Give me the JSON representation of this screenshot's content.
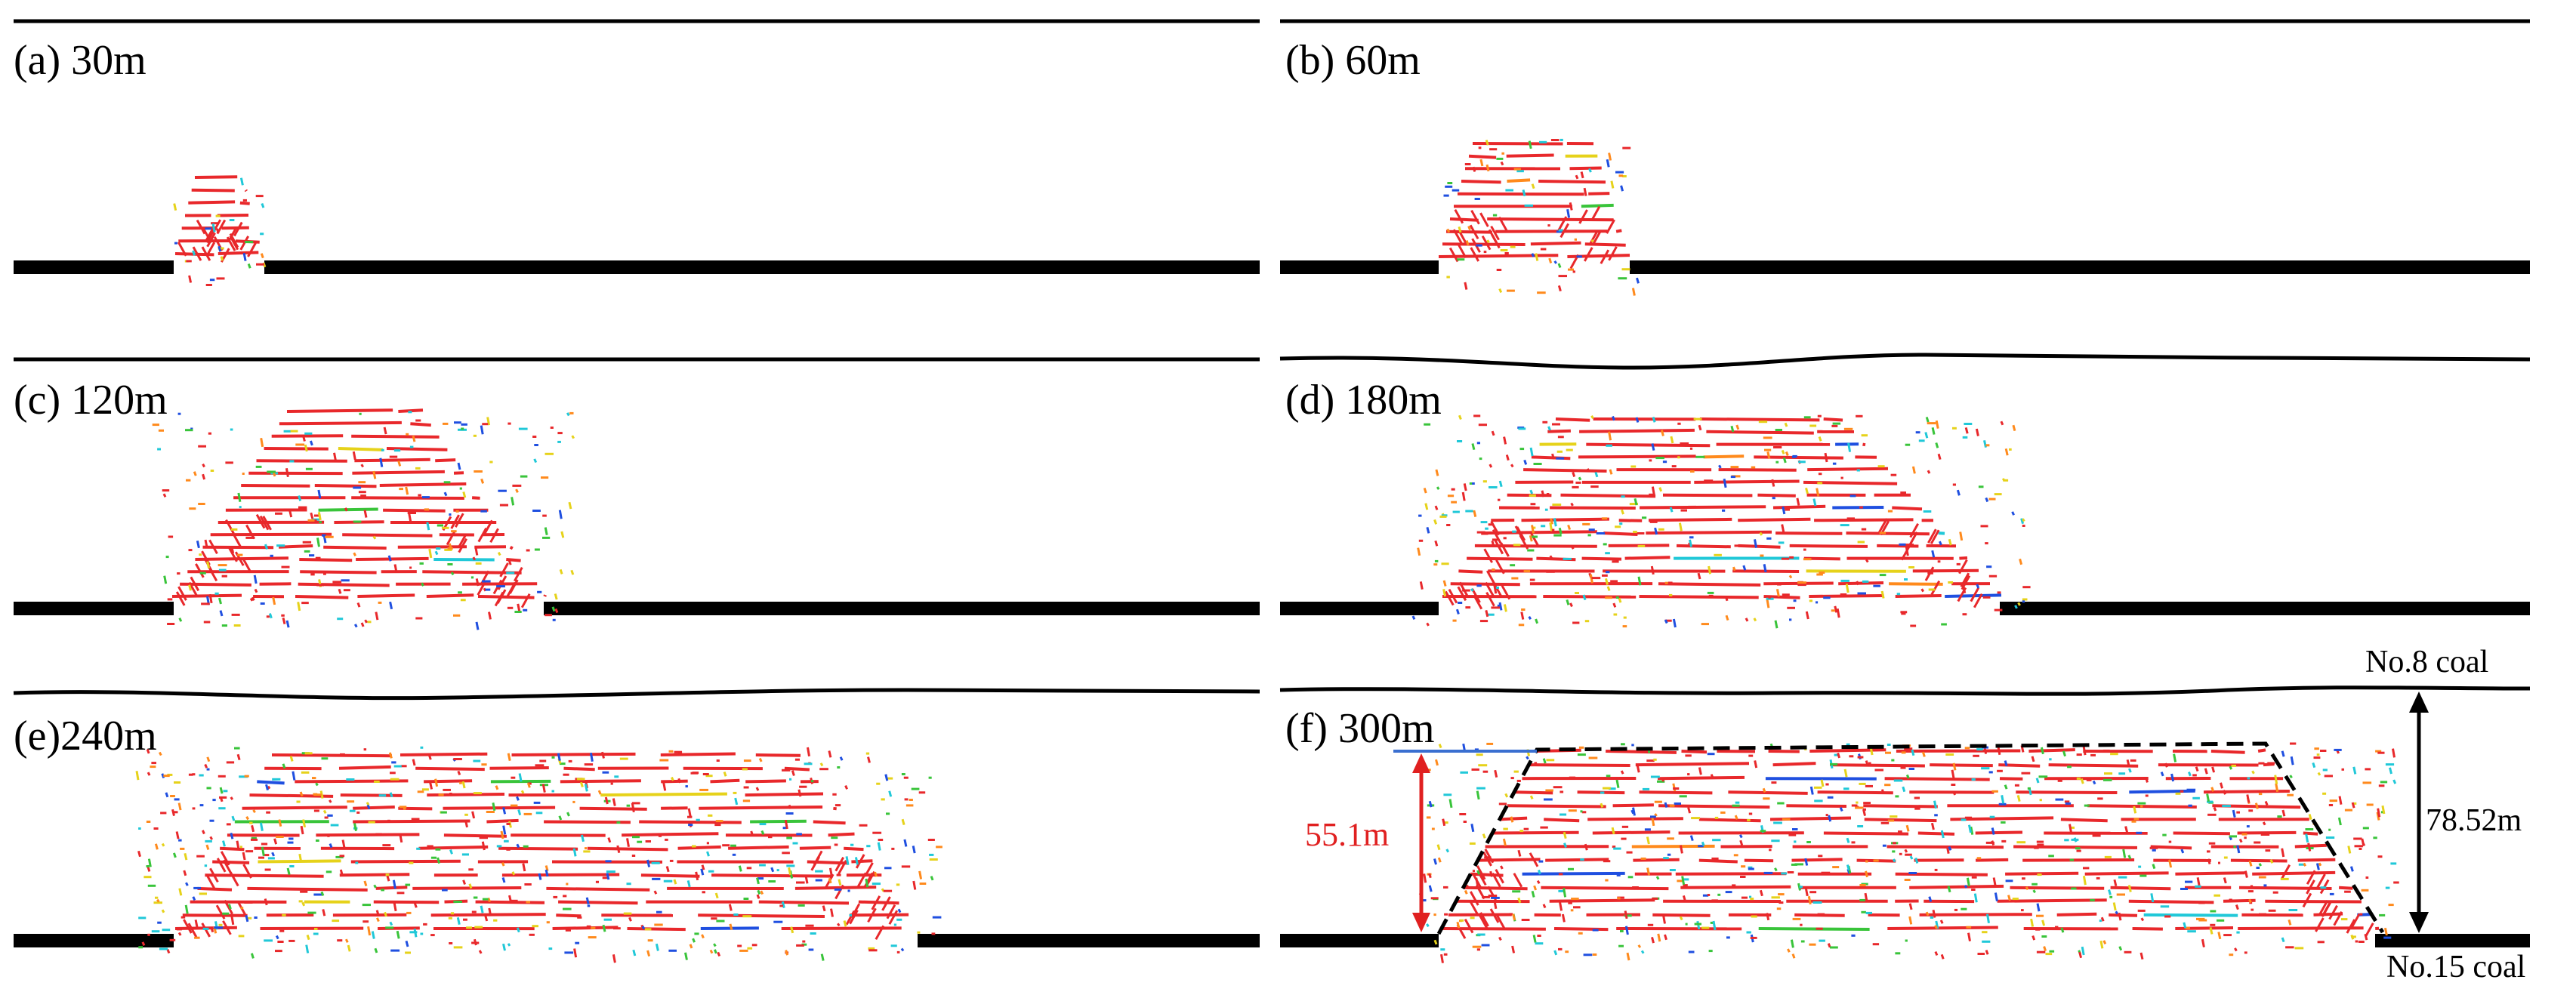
{
  "figure": {
    "panels": [
      {
        "id": "a",
        "label": "(a) 30m"
      },
      {
        "id": "b",
        "label": "(b) 60m"
      },
      {
        "id": "c",
        "label": "(c) 120m"
      },
      {
        "id": "d",
        "label": "(d) 180m"
      },
      {
        "id": "e",
        "label": "(e)240m"
      },
      {
        "id": "f",
        "label": "(f) 300m"
      }
    ],
    "annotations": {
      "upper_seam": "No.8 coal",
      "lower_seam": "No.15 coal",
      "caving_height": "55.1m",
      "seam_spacing": "78.52m"
    },
    "colors": {
      "fracture_primary": "#e8282b",
      "fracture_secondary": [
        "#1f4fe0",
        "#20c8d8",
        "#39c43a",
        "#e6d21a",
        "#ff8a1c"
      ],
      "seam": "#000000",
      "caving_arrow": "#e02020",
      "spacing_arrow": "#000000",
      "reference_line": "#3a6fd0"
    }
  }
}
